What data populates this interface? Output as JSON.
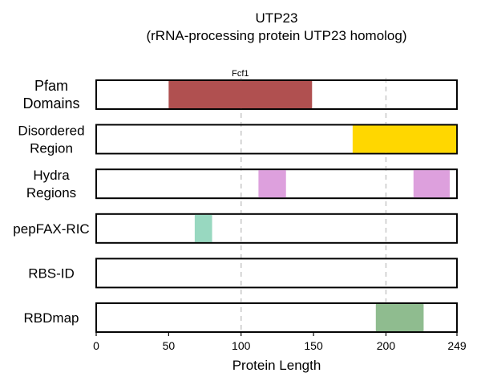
{
  "chart_data": {
    "type": "bar",
    "title": [
      "UTP23",
      "(rRNA-processing protein UTP23 homolog)"
    ],
    "xlabel": "Protein Length",
    "xlim": [
      0,
      249
    ],
    "xticks": [
      0,
      50,
      100,
      150,
      200,
      249
    ],
    "xtick_labels": [
      "0",
      "50",
      "100",
      "150",
      "200",
      "249"
    ],
    "gridlines": [
      100,
      200
    ],
    "rows": [
      {
        "label": [
          "Pfam",
          "Domains"
        ],
        "segments": [
          {
            "start": 50,
            "end": 149,
            "color": "#b05050",
            "label": "Fcf1"
          }
        ]
      },
      {
        "label": [
          "Disordered",
          "Region"
        ],
        "segments": [
          {
            "start": 177,
            "end": 249,
            "color": "#ffd700"
          }
        ]
      },
      {
        "label": [
          "Hydra",
          "Regions"
        ],
        "segments": [
          {
            "start": 112,
            "end": 131,
            "color": "#dda0dd"
          },
          {
            "start": 219,
            "end": 244,
            "color": "#dda0dd"
          }
        ]
      },
      {
        "label": [
          "pepFAX-RIC"
        ],
        "segments": [
          {
            "start": 68,
            "end": 80,
            "color": "#98d8c0"
          }
        ]
      },
      {
        "label": [
          "RBS-ID"
        ],
        "segments": []
      },
      {
        "label": [
          "RBDmap"
        ],
        "segments": [
          {
            "start": 193,
            "end": 226,
            "color": "#8fbc8f"
          }
        ]
      }
    ]
  }
}
